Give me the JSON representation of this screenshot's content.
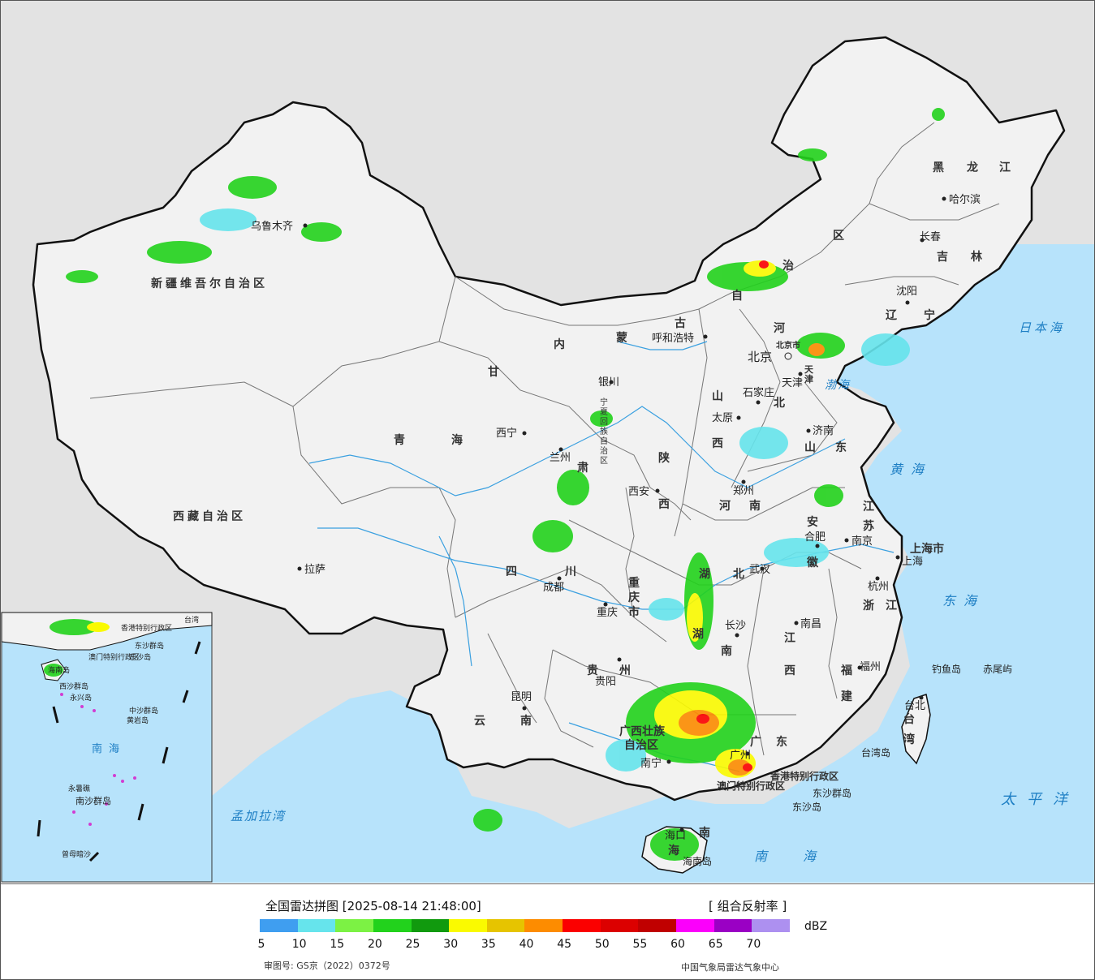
{
  "legend": {
    "title": "全国雷达拼图 [2025-08-14 21:48:00]",
    "product": "[ 组合反射率 ]",
    "unit": "dBZ",
    "approval": "审图号: GS京（2022）0372号",
    "source": "中国气象局雷达气象中心",
    "colors": [
      "#3f9ef0",
      "#66e4ec",
      "#7cf244",
      "#22d21c",
      "#119a0e",
      "#fafa00",
      "#e6c400",
      "#fd8c00",
      "#fb0000",
      "#dc0000",
      "#c00000",
      "#fb00fb",
      "#9a00c4",
      "#ad90f0"
    ],
    "ticks": [
      "5",
      "10",
      "15",
      "20",
      "25",
      "30",
      "35",
      "40",
      "45",
      "50",
      "55",
      "60",
      "65",
      "70"
    ]
  },
  "map": {
    "provinces": [
      {
        "name": "新疆维吾尔自治区"
      },
      {
        "name": "西藏自治区"
      },
      {
        "name": "青"
      },
      {
        "name": "海"
      },
      {
        "name": "甘"
      },
      {
        "name": "肃"
      },
      {
        "name": "内"
      },
      {
        "name": "蒙"
      },
      {
        "name": "古"
      },
      {
        "name": "自"
      },
      {
        "name": "治"
      },
      {
        "name": "区"
      },
      {
        "name": "黑"
      },
      {
        "name": "龙"
      },
      {
        "name": "江"
      },
      {
        "name": "吉"
      },
      {
        "name": "林"
      },
      {
        "name": "辽"
      },
      {
        "name": "宁"
      },
      {
        "name": "河"
      },
      {
        "name": "北"
      },
      {
        "name": "山"
      },
      {
        "name": "西"
      },
      {
        "name": "陕"
      },
      {
        "name": "西"
      },
      {
        "name": "宁"
      },
      {
        "name": "夏"
      },
      {
        "name": "回"
      },
      {
        "name": "族"
      },
      {
        "name": "自"
      },
      {
        "name": "治"
      },
      {
        "name": "区"
      },
      {
        "name": "山"
      },
      {
        "name": "东"
      },
      {
        "name": "河"
      },
      {
        "name": "南"
      },
      {
        "name": "江"
      },
      {
        "name": "苏"
      },
      {
        "name": "安"
      },
      {
        "name": "徽"
      },
      {
        "name": "湖"
      },
      {
        "name": "北"
      },
      {
        "name": "四"
      },
      {
        "name": "川"
      },
      {
        "name": "重"
      },
      {
        "name": "庆"
      },
      {
        "name": "市"
      },
      {
        "name": "浙"
      },
      {
        "name": "江"
      },
      {
        "name": "江"
      },
      {
        "name": "西"
      },
      {
        "name": "湖"
      },
      {
        "name": "南"
      },
      {
        "name": "贵"
      },
      {
        "name": "州"
      },
      {
        "name": "福"
      },
      {
        "name": "建"
      },
      {
        "name": "云"
      },
      {
        "name": "南"
      },
      {
        "name": "广"
      },
      {
        "name": "东"
      },
      {
        "name": "广西壮族"
      },
      {
        "name": "自治区"
      },
      {
        "name": "海"
      },
      {
        "name": "南"
      },
      {
        "name": "台"
      },
      {
        "name": "湾"
      },
      {
        "name": "上海市"
      },
      {
        "name": "天"
      },
      {
        "name": "津"
      },
      {
        "name": "北京市"
      },
      {
        "name": "香港特别行政区"
      },
      {
        "name": "澳门特别行政区"
      }
    ],
    "cities": [
      {
        "name": "乌鲁木齐"
      },
      {
        "name": "拉萨"
      },
      {
        "name": "西宁"
      },
      {
        "name": "兰州"
      },
      {
        "name": "银川"
      },
      {
        "name": "呼和浩特"
      },
      {
        "name": "哈尔滨"
      },
      {
        "name": "长春"
      },
      {
        "name": "沈阳"
      },
      {
        "name": "北京"
      },
      {
        "name": "天津"
      },
      {
        "name": "石家庄"
      },
      {
        "name": "太原"
      },
      {
        "name": "济南"
      },
      {
        "name": "郑州"
      },
      {
        "name": "西安"
      },
      {
        "name": "合肥"
      },
      {
        "name": "南京"
      },
      {
        "name": "上海"
      },
      {
        "name": "杭州"
      },
      {
        "name": "武汉"
      },
      {
        "name": "成都"
      },
      {
        "name": "重庆"
      },
      {
        "name": "长沙"
      },
      {
        "name": "南昌"
      },
      {
        "name": "福州"
      },
      {
        "name": "贵阳"
      },
      {
        "name": "昆明"
      },
      {
        "name": "南宁"
      },
      {
        "name": "广州"
      },
      {
        "name": "海口"
      },
      {
        "name": "台北"
      }
    ],
    "seas": [
      {
        "name": "日本海"
      },
      {
        "name": "渤海"
      },
      {
        "name": "黄海"
      },
      {
        "name": "东海"
      },
      {
        "name": "太平洋"
      },
      {
        "name": "南海"
      },
      {
        "name": "孟加拉湾"
      }
    ],
    "islands": [
      {
        "name": "钓鱼岛"
      },
      {
        "name": "赤尾屿"
      },
      {
        "name": "台湾岛"
      },
      {
        "name": "东沙群岛"
      },
      {
        "name": "东沙岛"
      },
      {
        "name": "海南岛"
      }
    ],
    "inset": {
      "labels": [
        {
          "name": "香港特别行政区"
        },
        {
          "name": "澳门特别行政区"
        },
        {
          "name": "东沙群岛"
        },
        {
          "name": "东沙岛"
        },
        {
          "name": "海南岛"
        },
        {
          "name": "西沙群岛"
        },
        {
          "name": "永兴岛"
        },
        {
          "name": "中沙群岛"
        },
        {
          "name": "黄岩岛"
        },
        {
          "name": "南海"
        },
        {
          "name": "永暑礁"
        },
        {
          "name": "南沙群岛"
        },
        {
          "name": "曾母暗沙"
        },
        {
          "name": "台湾"
        }
      ]
    }
  }
}
